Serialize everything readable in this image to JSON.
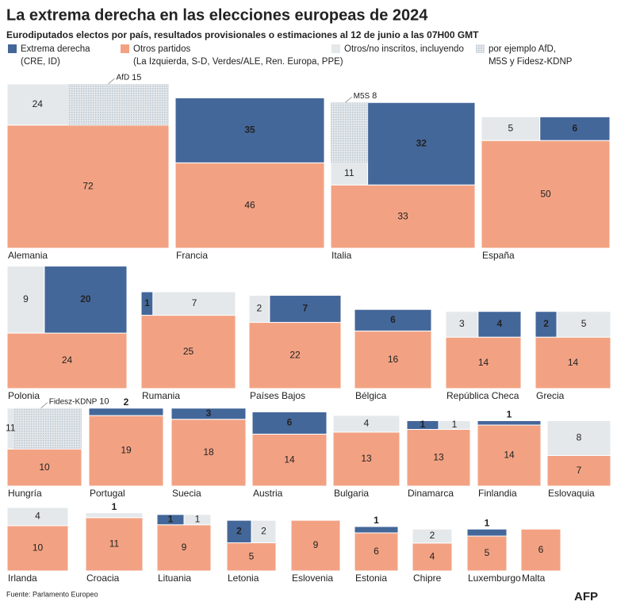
{
  "chart_data": {
    "type": "seat-blocks",
    "title": "La extrema derecha en las elecciones europeas de 2024",
    "subtitle": "Eurodiputados electos por país, resultados provisionales o estimaciones al 12 de junio a las 07H00 GMT",
    "legend": [
      {
        "lines": [
          "Extrema derecha",
          "(CRE, ID)"
        ],
        "color": "#44679a"
      },
      {
        "lines": [
          "Otros partidos",
          "(La Izquierda, S-D, Verdes/ALE, Ren. Europa, PPE)"
        ],
        "color": "#f2a283"
      },
      {
        "lines": [
          "Otros/no inscritos, incluyendo"
        ],
        "color": "#e4e8eb"
      },
      {
        "lines": [
          "por ejemplo AfD,",
          "M5S y Fidesz-KDNP"
        ],
        "color": "#b9c4cf"
      }
    ],
    "countries": [
      {
        "name": "Alemania",
        "others": 72,
        "non_inscribed": 24,
        "highlight": {
          "label": "AfD",
          "value": 15
        }
      },
      {
        "name": "Francia",
        "far_right": 35,
        "others": 46
      },
      {
        "name": "Italia",
        "far_right": 32,
        "others": 33,
        "non_inscribed": 11,
        "highlight": {
          "label": "M5S",
          "value": 8
        }
      },
      {
        "name": "España",
        "far_right": 6,
        "others": 50,
        "non_inscribed": 5
      },
      {
        "name": "Polonia",
        "far_right": 20,
        "others": 24,
        "non_inscribed": 9
      },
      {
        "name": "Rumania",
        "far_right": 1,
        "others": 25,
        "non_inscribed": 7
      },
      {
        "name": "Países Bajos",
        "far_right": 7,
        "others": 22,
        "non_inscribed": 2
      },
      {
        "name": "Bélgica",
        "far_right": 6,
        "others": 16
      },
      {
        "name": "República Checa",
        "far_right": 4,
        "others": 14,
        "non_inscribed": 3
      },
      {
        "name": "Grecia",
        "far_right": 2,
        "others": 14,
        "non_inscribed": 5
      },
      {
        "name": "Hungría",
        "others": 10,
        "non_inscribed": 11,
        "highlight": {
          "label": "Fidesz-KDNP",
          "value": 10
        }
      },
      {
        "name": "Portugal",
        "far_right": 2,
        "others": 19
      },
      {
        "name": "Suecia",
        "far_right": 3,
        "others": 18
      },
      {
        "name": "Austria",
        "far_right": 6,
        "others": 14
      },
      {
        "name": "Bulgaria",
        "others": 13,
        "non_inscribed": 4
      },
      {
        "name": "Dinamarca",
        "far_right": 1,
        "others": 13,
        "non_inscribed": 1
      },
      {
        "name": "Finlandia",
        "far_right": 1,
        "others": 14
      },
      {
        "name": "Eslovaquia",
        "others": 7,
        "non_inscribed": 8
      },
      {
        "name": "Irlanda",
        "others": 10,
        "non_inscribed": 4
      },
      {
        "name": "Croacia",
        "others": 11,
        "non_inscribed": 1
      },
      {
        "name": "Lituania",
        "far_right": 1,
        "others": 9,
        "non_inscribed": 1
      },
      {
        "name": "Letonia",
        "far_right": 2,
        "others": 5,
        "non_inscribed": 2
      },
      {
        "name": "Eslovenia",
        "others": 9
      },
      {
        "name": "Estonia",
        "far_right": 1,
        "others": 6
      },
      {
        "name": "Chipre",
        "others": 4,
        "non_inscribed": 2
      },
      {
        "name": "Luxemburgo",
        "far_right": 1,
        "others": 5
      },
      {
        "name": "Malta",
        "others": 6
      }
    ],
    "source": "Fuente: Parlamento Europeo",
    "credit": "AFP"
  }
}
